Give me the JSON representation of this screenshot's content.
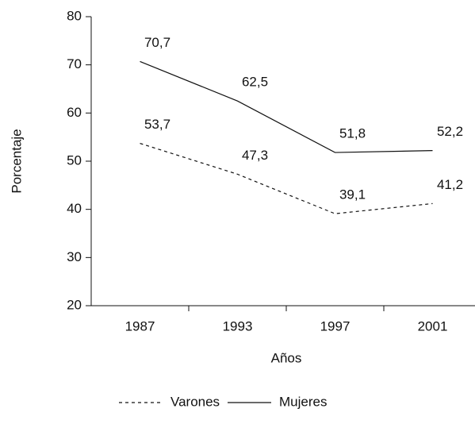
{
  "chart_data": {
    "type": "line",
    "categories": [
      "1987",
      "1993",
      "1997",
      "2001"
    ],
    "series": [
      {
        "name": "Varones",
        "color": "#111111",
        "line_style": "dashed",
        "values": [
          53.7,
          47.3,
          39.1,
          41.2
        ],
        "value_labels": [
          "53,7",
          "47,3",
          "39,1",
          "41,2"
        ]
      },
      {
        "name": "Mujeres",
        "color": "#111111",
        "line_style": "solid",
        "values": [
          70.7,
          62.5,
          51.8,
          52.2
        ],
        "value_labels": [
          "70,7",
          "62,5",
          "51,8",
          "52,2"
        ]
      }
    ],
    "x_label": "Años",
    "y_label": "Porcentaje",
    "ylim": [
      20,
      80
    ],
    "yticks": [
      20,
      30,
      40,
      50,
      60,
      70,
      80
    ],
    "legend": "bottom"
  }
}
